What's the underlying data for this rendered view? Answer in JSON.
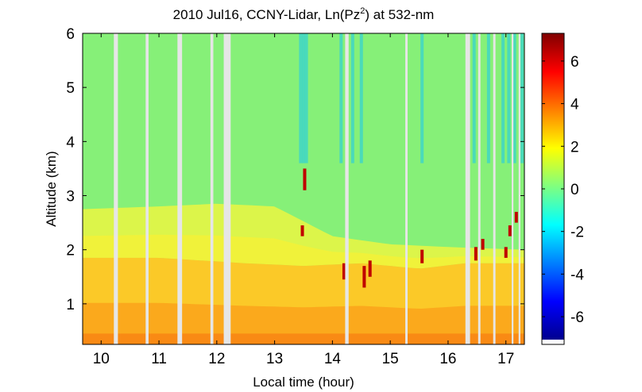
{
  "chart_data": {
    "type": "heatmap",
    "title": "2010 Jul16, CCNY-Lidar, Ln(Pz",
    "title_sup": "2",
    "title_suffix": ") at 532-nm",
    "xlabel": "Local time (hour)",
    "ylabel": "Altitude (km)",
    "xlim": [
      9.68,
      17.32
    ],
    "ylim": [
      0.25,
      6.0
    ],
    "x_ticks": [
      10,
      11,
      12,
      13,
      14,
      15,
      16,
      17
    ],
    "y_ticks": [
      1,
      2,
      3,
      4,
      5,
      6
    ],
    "colorbar": {
      "range": [
        -7.3,
        7.3
      ],
      "ticks": [
        6,
        4,
        2,
        0,
        -2,
        -4,
        -6
      ],
      "colormap": "jet"
    },
    "data_gaps_hours": [
      [
        10.22,
        10.29
      ],
      [
        10.77,
        10.82
      ],
      [
        11.32,
        11.4
      ],
      [
        11.89,
        11.94
      ],
      [
        12.12,
        12.24
      ],
      [
        14.22,
        14.28
      ],
      [
        15.26,
        15.3
      ],
      [
        16.3,
        16.38
      ],
      [
        16.52,
        16.56
      ],
      [
        16.78,
        16.82
      ],
      [
        17.1,
        17.13
      ],
      [
        17.22,
        17.25
      ]
    ],
    "layers": {
      "surface_layer_top_km": 0.45,
      "mixed_layer_top_km": [
        [
          9.7,
          1.85
        ],
        [
          11.0,
          1.85
        ],
        [
          12.5,
          1.75
        ],
        [
          13.5,
          1.7
        ],
        [
          14.5,
          1.75
        ],
        [
          15.5,
          1.65
        ],
        [
          16.3,
          1.75
        ],
        [
          17.3,
          1.75
        ]
      ],
      "transition_top_km": [
        [
          9.7,
          2.75
        ],
        [
          11.0,
          2.8
        ],
        [
          12.0,
          2.85
        ],
        [
          13.0,
          2.8
        ],
        [
          14.0,
          2.25
        ],
        [
          15.0,
          2.1
        ],
        [
          16.0,
          2.05
        ],
        [
          17.3,
          2.0
        ]
      ]
    },
    "cloud_features": [
      {
        "t": 13.48,
        "z0": 2.25,
        "z1": 2.45
      },
      {
        "t": 13.52,
        "z0": 3.1,
        "z1": 3.5
      },
      {
        "t": 14.2,
        "z0": 1.45,
        "z1": 1.75
      },
      {
        "t": 14.55,
        "z0": 1.3,
        "z1": 1.7
      },
      {
        "t": 14.65,
        "z0": 1.5,
        "z1": 1.8
      },
      {
        "t": 15.55,
        "z0": 1.75,
        "z1": 2.0
      },
      {
        "t": 16.48,
        "z0": 1.8,
        "z1": 2.05
      },
      {
        "t": 16.6,
        "z0": 2.0,
        "z1": 2.2
      },
      {
        "t": 17.0,
        "z0": 1.85,
        "z1": 2.05
      },
      {
        "t": 17.07,
        "z0": 2.25,
        "z1": 2.45
      },
      {
        "t": 17.18,
        "z0": 2.5,
        "z1": 2.7
      }
    ]
  }
}
